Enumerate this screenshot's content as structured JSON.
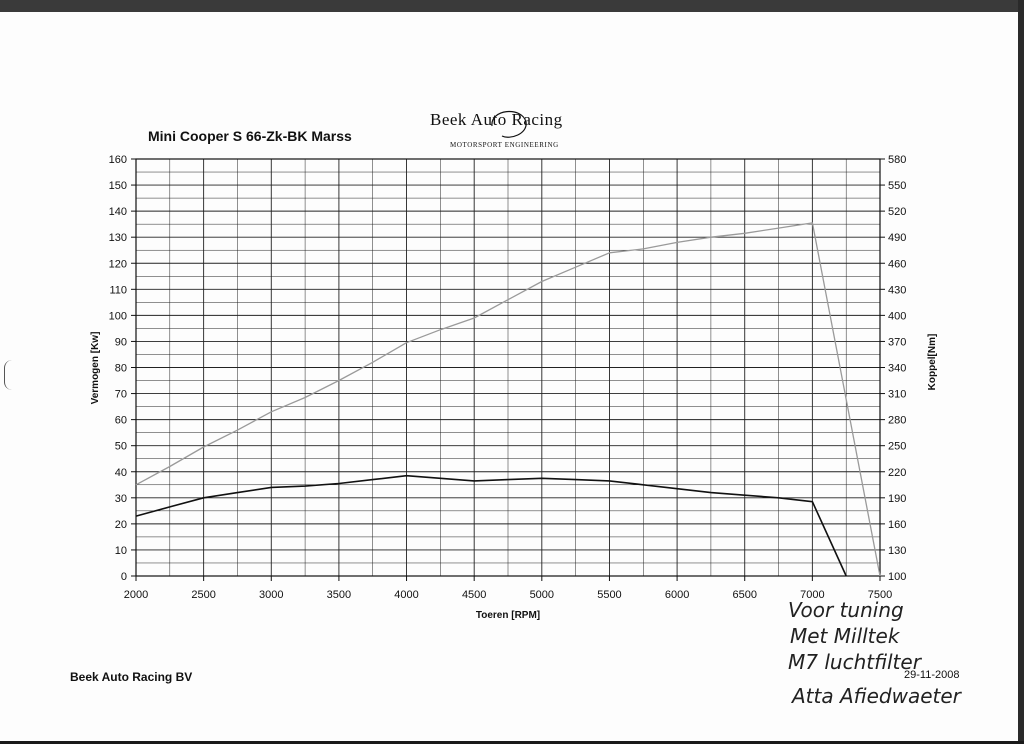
{
  "header": {
    "chart_title": "Mini Cooper S 66-Zk-BK Marss",
    "logo_text": "Beek Auto Racing",
    "logo_subtitle": "MOTORSPORT ENGINEERING"
  },
  "footer": {
    "company": "Beek Auto Racing BV",
    "date": "29-11-2008"
  },
  "handwritten_notes": [
    "Voor tuning",
    "Met Milltek",
    "M7 luchtfilter",
    "Atta Afiedwaeter"
  ],
  "chart_data": {
    "type": "line",
    "xlabel": "Toeren [RPM]",
    "ylabel": "Vermogen [Kw]",
    "y2label": "Koppel[Nm]",
    "xlim": [
      2000,
      7500
    ],
    "ylim": [
      0,
      160
    ],
    "y2lim": [
      100,
      580
    ],
    "x_ticks": [
      2000,
      2500,
      3000,
      3500,
      4000,
      4500,
      5000,
      5500,
      6000,
      6500,
      7000,
      7500
    ],
    "y_ticks": [
      0,
      10,
      20,
      30,
      40,
      50,
      60,
      70,
      80,
      90,
      100,
      110,
      120,
      130,
      140,
      150,
      160
    ],
    "y2_ticks": [
      100,
      130,
      160,
      190,
      220,
      250,
      280,
      310,
      340,
      370,
      400,
      430,
      460,
      490,
      520,
      550,
      580
    ],
    "grid": true,
    "series": [
      {
        "axis": "left",
        "color": "#9a9a9a",
        "x": [
          2000,
          2250,
          2500,
          2750,
          3000,
          3250,
          3500,
          3750,
          4000,
          4250,
          4500,
          4750,
          5000,
          5250,
          5500,
          5750,
          6000,
          6250,
          6500,
          6750,
          7000,
          7500
        ],
        "y": [
          35,
          42,
          49.5,
          56,
          63,
          68.5,
          75,
          82,
          89.5,
          94.5,
          99,
          106,
          113,
          118.5,
          124,
          125.5,
          128,
          130,
          131.5,
          133.5,
          135.5,
          0
        ]
      },
      {
        "axis": "left",
        "color": "#111111",
        "x": [
          2000,
          2250,
          2500,
          2750,
          3000,
          3250,
          3500,
          3750,
          4000,
          4250,
          4500,
          4750,
          5000,
          5250,
          5500,
          5750,
          6000,
          6250,
          6500,
          6750,
          7000,
          7250
        ],
        "y": [
          23,
          26.5,
          30,
          32,
          34,
          34.5,
          35.5,
          37,
          38.5,
          37.5,
          36.5,
          37,
          37.5,
          37,
          36.5,
          35,
          33.5,
          32,
          31,
          30,
          28.5,
          0
        ]
      }
    ]
  }
}
